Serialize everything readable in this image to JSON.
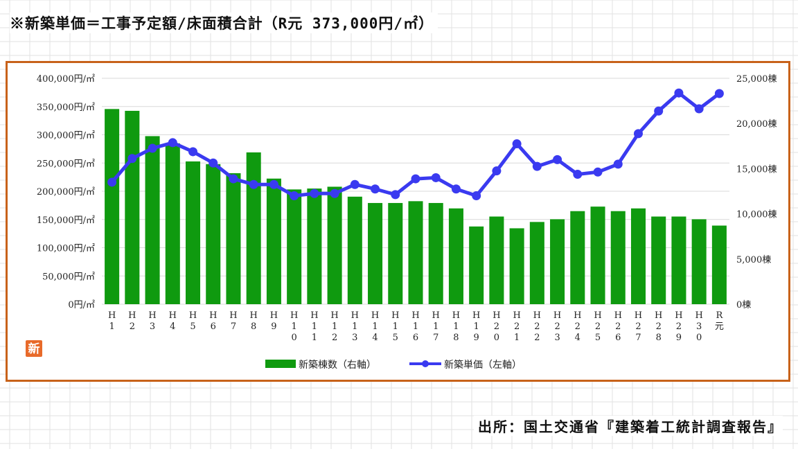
{
  "title": "※新築単価＝工事予定額/床面積合計（R元 373,000円/㎡）",
  "source": "出所：国土交通省『建築着工統計調査報告』",
  "logo_text": "新",
  "colors": {
    "bar": "#0f9a0f",
    "line": "#3a3af0",
    "frame": "#c8621a",
    "grid": "#d9d9d9"
  },
  "chart_data": {
    "type": "bar+line",
    "categories": [
      "H1",
      "H2",
      "H3",
      "H4",
      "H5",
      "H6",
      "H7",
      "H8",
      "H9",
      "H10",
      "H11",
      "H12",
      "H13",
      "H14",
      "H15",
      "H16",
      "H17",
      "H18",
      "H19",
      "H20",
      "H21",
      "H22",
      "H23",
      "H24",
      "H25",
      "H26",
      "H27",
      "H28",
      "H29",
      "H30",
      "R元"
    ],
    "category_labels": [
      [
        "H",
        "1"
      ],
      [
        "H",
        "2"
      ],
      [
        "H",
        "3"
      ],
      [
        "H",
        "4"
      ],
      [
        "H",
        "5"
      ],
      [
        "H",
        "6"
      ],
      [
        "H",
        "7"
      ],
      [
        "H",
        "8"
      ],
      [
        "H",
        "9"
      ],
      [
        "H",
        "1",
        "0"
      ],
      [
        "H",
        "1",
        "1"
      ],
      [
        "H",
        "1",
        "2"
      ],
      [
        "H",
        "1",
        "3"
      ],
      [
        "H",
        "1",
        "4"
      ],
      [
        "H",
        "1",
        "5"
      ],
      [
        "H",
        "1",
        "6"
      ],
      [
        "H",
        "1",
        "7"
      ],
      [
        "H",
        "1",
        "8"
      ],
      [
        "H",
        "1",
        "9"
      ],
      [
        "H",
        "2",
        "0"
      ],
      [
        "H",
        "2",
        "1"
      ],
      [
        "H",
        "2",
        "2"
      ],
      [
        "H",
        "2",
        "3"
      ],
      [
        "H",
        "2",
        "4"
      ],
      [
        "H",
        "2",
        "5"
      ],
      [
        "H",
        "2",
        "6"
      ],
      [
        "H",
        "2",
        "7"
      ],
      [
        "H",
        "2",
        "8"
      ],
      [
        "H",
        "2",
        "9"
      ],
      [
        "H",
        "3",
        "0"
      ],
      [
        "R",
        "元"
      ]
    ],
    "series": [
      {
        "name": "新築棟数（右軸）",
        "type": "bar",
        "axis": "right",
        "values": [
          21600,
          21400,
          18600,
          17800,
          15800,
          15500,
          14500,
          16800,
          13900,
          12700,
          12800,
          13000,
          11900,
          11200,
          11200,
          11400,
          11200,
          10600,
          8600,
          9700,
          8400,
          9100,
          9400,
          10300,
          10800,
          10300,
          10600,
          9700,
          9700,
          9400,
          8700
        ]
      },
      {
        "name": "新築単価（左軸）",
        "type": "line",
        "axis": "left",
        "values": [
          216000,
          258000,
          276000,
          286000,
          270000,
          250000,
          222000,
          212000,
          212000,
          192000,
          196000,
          196000,
          212000,
          204000,
          194000,
          222000,
          224000,
          204000,
          192000,
          236000,
          284000,
          244000,
          256000,
          230000,
          234000,
          248000,
          302000,
          342000,
          374000,
          346000,
          373000
        ]
      }
    ],
    "y_left": {
      "min": 0,
      "max": 400000,
      "ticks": [
        "0円/㎡",
        "50,000円/㎡",
        "100,000円/㎡",
        "150,000円/㎡",
        "200,000円/㎡",
        "250,000円/㎡",
        "300,000円/㎡",
        "350,000円/㎡",
        "400,000円/㎡"
      ]
    },
    "y_right": {
      "min": 0,
      "max": 25000,
      "ticks": [
        "0棟",
        "5,000棟",
        "10,000棟",
        "15,000棟",
        "20,000棟",
        "25,000棟"
      ]
    },
    "grid": true,
    "legend": "bottom"
  }
}
